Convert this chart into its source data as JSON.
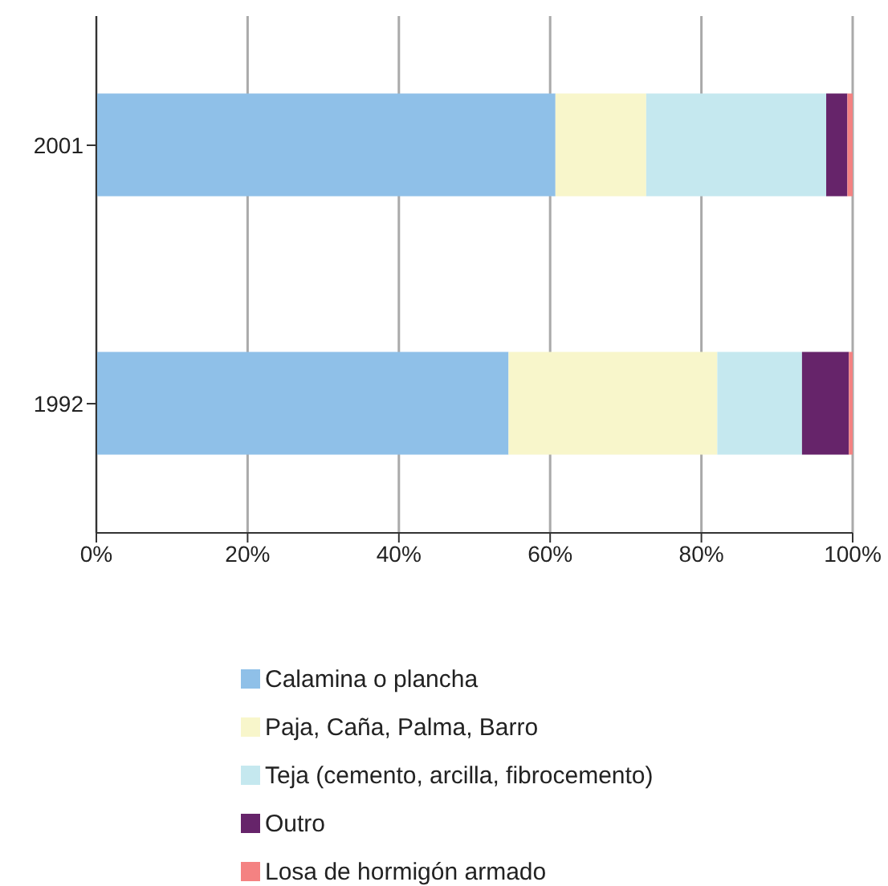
{
  "chart_data": {
    "type": "bar",
    "orientation": "horizontal",
    "stacked": true,
    "categories": [
      "2001",
      "1992"
    ],
    "series": [
      {
        "name": "Calamina o plancha",
        "color": "#8fc0e8",
        "values": [
          60.7,
          54.5
        ]
      },
      {
        "name": "Paja, Caña, Palma, Barro",
        "color": "#f8f6cb",
        "values": [
          12.0,
          27.6
        ]
      },
      {
        "name": "Teja (cemento, arcilla, fibrocemento)",
        "color": "#c5e8ef",
        "values": [
          23.8,
          11.2
        ]
      },
      {
        "name": "Outro",
        "color": "#66246a",
        "values": [
          2.8,
          6.2
        ]
      },
      {
        "name": "Losa de hormigón armado",
        "color": "#f48282",
        "values": [
          0.7,
          0.5
        ]
      }
    ],
    "xlim": [
      0,
      100
    ],
    "xticks": [
      {
        "value": 0,
        "label": "0%"
      },
      {
        "value": 20,
        "label": "20%"
      },
      {
        "value": 40,
        "label": "40%"
      },
      {
        "value": 60,
        "label": "60%"
      },
      {
        "value": 80,
        "label": "80%"
      },
      {
        "value": 100,
        "label": "100%"
      }
    ],
    "grid": "x",
    "legend": "bottom"
  }
}
